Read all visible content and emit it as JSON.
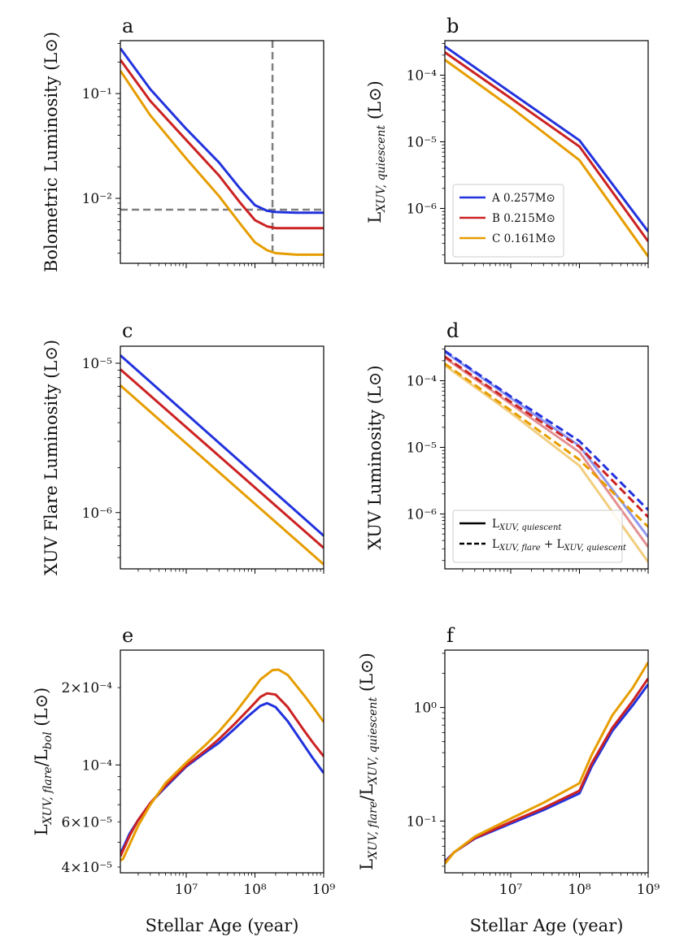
{
  "figure": {
    "xlabel": "Stellar Age (year)"
  },
  "colors": {
    "A": "#2233dd",
    "B": "#cc2222",
    "C": "#e69d00",
    "guide": "#7f7f7f"
  },
  "chart_data": [
    {
      "id": "a",
      "type": "line",
      "letter": "a",
      "ylabel": "Bolometric Luminosity (L⊙)",
      "xscale": "log",
      "yscale": "log",
      "xlim": [
        1100000,
        1000000000
      ],
      "ylim": [
        0.0024,
        0.32
      ],
      "xticks": [],
      "yticks": [
        {
          "v": 0.1,
          "label": "10⁻¹"
        },
        {
          "v": 0.01,
          "label": "10⁻²"
        }
      ],
      "guides": [
        {
          "axis": "x",
          "value": 180000000
        },
        {
          "axis": "y",
          "value": 0.0078
        }
      ],
      "series": [
        {
          "name": "A 0.257M⊙",
          "color": "A",
          "x": [
            1100000,
            3000000,
            10000000,
            30000000,
            60000000,
            100000000,
            150000000,
            200000000,
            400000000,
            1000000000
          ],
          "y": [
            0.27,
            0.11,
            0.046,
            0.022,
            0.0125,
            0.0086,
            0.0076,
            0.0074,
            0.0073,
            0.0073
          ]
        },
        {
          "name": "B 0.215M⊙",
          "color": "B",
          "x": [
            1100000,
            3000000,
            10000000,
            30000000,
            60000000,
            100000000,
            150000000,
            200000000,
            400000000,
            1000000000
          ],
          "y": [
            0.21,
            0.085,
            0.036,
            0.0165,
            0.0092,
            0.0062,
            0.0054,
            0.0052,
            0.0052,
            0.0052
          ]
        },
        {
          "name": "C 0.161M⊙",
          "color": "C",
          "x": [
            1100000,
            3000000,
            10000000,
            30000000,
            60000000,
            100000000,
            150000000,
            200000000,
            400000000,
            1000000000
          ],
          "y": [
            0.165,
            0.062,
            0.024,
            0.0105,
            0.0058,
            0.0038,
            0.0032,
            0.003,
            0.0029,
            0.0029
          ]
        }
      ]
    },
    {
      "id": "b",
      "type": "line",
      "letter": "b",
      "ylabel": "LXUV,quiescent (L⊙)",
      "ylabel_parts": {
        "main": "L",
        "sub": "XUV, quiescent",
        "unit": " (L⊙)"
      },
      "xscale": "log",
      "yscale": "log",
      "xlim": [
        1100000,
        1000000000
      ],
      "ylim": [
        1.5e-07,
        0.00033
      ],
      "xticks": [],
      "yticks": [
        {
          "v": 0.0001,
          "label": "10⁻⁴"
        },
        {
          "v": 1e-05,
          "label": "10⁻⁵"
        },
        {
          "v": 1e-06,
          "label": "10⁻⁶"
        }
      ],
      "legend": {
        "position": "lower-left",
        "entries": [
          {
            "label": "A 0.257M⊙",
            "color": "A",
            "style": "solid"
          },
          {
            "label": "B 0.215M⊙",
            "color": "B",
            "style": "solid"
          },
          {
            "label": "C 0.161M⊙",
            "color": "C",
            "style": "solid"
          }
        ]
      },
      "series": [
        {
          "name": "A 0.257M⊙",
          "color": "A",
          "x": [
            1100000,
            10000000,
            100000000,
            1000000000
          ],
          "y": [
            0.00027,
            5.5e-05,
            1.05e-05,
            4.5e-07
          ]
        },
        {
          "name": "B 0.215M⊙",
          "color": "B",
          "x": [
            1100000,
            10000000,
            100000000,
            1000000000
          ],
          "y": [
            0.00022,
            4.5e-05,
            8.5e-06,
            3.2e-07
          ]
        },
        {
          "name": "C 0.161M⊙",
          "color": "C",
          "x": [
            1100000,
            10000000,
            100000000,
            1000000000
          ],
          "y": [
            0.00017,
            3.3e-05,
            5.3e-06,
            1.9e-07
          ]
        }
      ]
    },
    {
      "id": "c",
      "type": "line",
      "letter": "c",
      "ylabel": "XUV Flare Luminosity (L⊙)",
      "xscale": "log",
      "yscale": "log",
      "xlim": [
        1100000,
        1000000000
      ],
      "ylim": [
        4.2e-07,
        1.3e-05
      ],
      "xticks": [],
      "yticks": [
        {
          "v": 1e-05,
          "label": "10⁻⁵"
        },
        {
          "v": 1e-06,
          "label": "10⁻⁶"
        }
      ],
      "series": [
        {
          "name": "A 0.257M⊙",
          "color": "A",
          "x": [
            1100000,
            1000000000
          ],
          "y": [
            1.13e-05,
            7e-07
          ]
        },
        {
          "name": "B 0.215M⊙",
          "color": "B",
          "x": [
            1100000,
            1000000000
          ],
          "y": [
            9.1e-06,
            5.8e-07
          ]
        },
        {
          "name": "C 0.161M⊙",
          "color": "C",
          "x": [
            1100000,
            1000000000
          ],
          "y": [
            7.1e-06,
            4.5e-07
          ]
        }
      ]
    },
    {
      "id": "d",
      "type": "line",
      "letter": "d",
      "ylabel": "XUV Luminosity (L⊙)",
      "xscale": "log",
      "yscale": "log",
      "xlim": [
        1100000,
        1000000000
      ],
      "ylim": [
        1.5e-07,
        0.00033
      ],
      "xticks": [],
      "yticks": [
        {
          "v": 0.0001,
          "label": "10⁻⁴"
        },
        {
          "v": 1e-05,
          "label": "10⁻⁵"
        },
        {
          "v": 1e-06,
          "label": "10⁻⁶"
        }
      ],
      "legend": {
        "position": "lower-left",
        "entries": [
          {
            "label": "LXUV,quiescent",
            "parts": {
              "main": "L",
              "sub": "XUV, quiescent"
            },
            "style": "solid"
          },
          {
            "label": "LXUV,flare + LXUV,quiescent",
            "parts": {
              "main": "L",
              "sub": "XUV, flare",
              "mid": " + L",
              "sub2": "XUV, quiescent"
            },
            "style": "dashed"
          }
        ]
      },
      "series": [
        {
          "name": "A quiescent",
          "color": "A",
          "style": "solid",
          "opacity": 0.5,
          "x": [
            1100000,
            10000000,
            100000000,
            1000000000
          ],
          "y": [
            0.00027,
            5.5e-05,
            1.05e-05,
            4.5e-07
          ]
        },
        {
          "name": "B quiescent",
          "color": "B",
          "style": "solid",
          "opacity": 0.5,
          "x": [
            1100000,
            10000000,
            100000000,
            1000000000
          ],
          "y": [
            0.00022,
            4.5e-05,
            8.5e-06,
            3.2e-07
          ]
        },
        {
          "name": "C quiescent",
          "color": "C",
          "style": "solid",
          "opacity": 0.5,
          "x": [
            1100000,
            10000000,
            100000000,
            1000000000
          ],
          "y": [
            0.00017,
            3.3e-05,
            5.3e-06,
            1.9e-07
          ]
        },
        {
          "name": "A flare + quiescent",
          "color": "A",
          "style": "dashed",
          "x": [
            1100000,
            10000000,
            100000000,
            1000000000
          ],
          "y": [
            0.00028,
            5.8e-05,
            1.24e-05,
            1.15e-06
          ]
        },
        {
          "name": "B flare + quiescent",
          "color": "B",
          "style": "dashed",
          "x": [
            1100000,
            10000000,
            100000000,
            1000000000
          ],
          "y": [
            0.00023,
            4.8e-05,
            1.02e-05,
            9e-07
          ]
        },
        {
          "name": "C flare + quiescent",
          "color": "C",
          "style": "dashed",
          "x": [
            1100000,
            10000000,
            100000000,
            1000000000
          ],
          "y": [
            0.00018,
            3.6e-05,
            6.5e-06,
            6.4e-07
          ]
        }
      ]
    },
    {
      "id": "e",
      "type": "line",
      "letter": "e",
      "ylabel": "LXUV,flare/Lbol (L⊙)",
      "ylabel_parts": {
        "main": "L",
        "sub": "XUV, flare",
        "mid": "/L",
        "sub2": "bol",
        "unit": " (L⊙)"
      },
      "xscale": "log",
      "yscale": "log",
      "xlim": [
        1100000,
        1000000000
      ],
      "ylim": [
        3.8e-05,
        0.00028
      ],
      "xticks": [
        {
          "v": 10000000,
          "label": "10⁷"
        },
        {
          "v": 100000000,
          "label": "10⁸"
        },
        {
          "v": 1000000000,
          "label": "10⁹"
        }
      ],
      "yticks": [
        {
          "v": 0.0002,
          "label": "2×10⁻⁴"
        },
        {
          "v": 0.0001,
          "label": "10⁻⁴"
        },
        {
          "v": 6e-05,
          "label": "6×10⁻⁵"
        },
        {
          "v": 4e-05,
          "label": "4×10⁻⁵"
        }
      ],
      "series": [
        {
          "name": "A 0.257M⊙",
          "color": "A",
          "x": [
            1100000,
            1500000,
            2000000,
            3000000,
            5000000,
            10000000,
            20000000,
            30000000,
            50000000,
            80000000,
            120000000,
            150000000,
            200000000,
            300000000,
            500000000,
            700000000,
            1000000000
          ],
          "y": [
            4.5e-05,
            5.4e-05,
            6.1e-05,
            7.1e-05,
            8.2e-05,
            9.85e-05,
            0.000113,
            0.000122,
            0.000138,
            0.000155,
            0.00017,
            0.000174,
            0.000168,
            0.000148,
            0.000121,
            0.000106,
            9.3e-05
          ]
        },
        {
          "name": "B 0.215M⊙",
          "color": "B",
          "x": [
            1100000,
            1500000,
            2000000,
            3000000,
            5000000,
            10000000,
            20000000,
            30000000,
            50000000,
            80000000,
            120000000,
            150000000,
            200000000,
            300000000,
            500000000,
            700000000,
            1000000000
          ],
          "y": [
            4.4e-05,
            5.3e-05,
            6.1e-05,
            7.1e-05,
            8.3e-05,
            9.95e-05,
            0.000115,
            0.000126,
            0.000144,
            0.000164,
            0.000184,
            0.00019,
            0.000188,
            0.000168,
            0.000138,
            0.000122,
            0.000108
          ]
        },
        {
          "name": "C 0.161M⊙",
          "color": "C",
          "x": [
            1100000,
            1200000,
            1500000,
            2000000,
            3000000,
            5000000,
            10000000,
            20000000,
            30000000,
            50000000,
            80000000,
            120000000,
            180000000,
            220000000,
            300000000,
            500000000,
            700000000,
            1000000000
          ],
          "y": [
            4.25e-05,
            4.3e-05,
            4.9e-05,
            5.8e-05,
            7e-05,
            8.5e-05,
            0.000102,
            0.000121,
            0.000135,
            0.000158,
            0.000186,
            0.000215,
            0.000234,
            0.000235,
            0.000224,
            0.000189,
            0.000168,
            0.000147
          ]
        }
      ]
    },
    {
      "id": "f",
      "type": "line",
      "letter": "f",
      "ylabel": "LXUV,flare/LXUV,quiescent (L⊙)",
      "ylabel_parts": {
        "main": "L",
        "sub": "XUV, flare",
        "mid": "/L",
        "sub2": "XUV, quiescent",
        "unit": " (L⊙)"
      },
      "xscale": "log",
      "yscale": "log",
      "xlim": [
        1100000,
        1000000000
      ],
      "ylim": [
        0.035,
        3.2
      ],
      "xticks": [
        {
          "v": 10000000,
          "label": "10⁷"
        },
        {
          "v": 100000000,
          "label": "10⁸"
        },
        {
          "v": 1000000000,
          "label": "10⁹"
        }
      ],
      "yticks": [
        {
          "v": 1,
          "label": "10⁰"
        },
        {
          "v": 0.1,
          "label": "10⁻¹"
        }
      ],
      "series": [
        {
          "name": "A 0.257M⊙",
          "color": "A",
          "x": [
            1100000,
            1500000,
            3000000,
            10000000,
            30000000,
            100000000,
            150000000,
            300000000,
            600000000,
            1000000000
          ],
          "y": [
            0.044,
            0.053,
            0.07,
            0.095,
            0.125,
            0.175,
            0.3,
            0.62,
            1.05,
            1.6
          ]
        },
        {
          "name": "B 0.215M⊙",
          "color": "B",
          "x": [
            1100000,
            1500000,
            3000000,
            10000000,
            30000000,
            100000000,
            150000000,
            300000000,
            600000000,
            1000000000
          ],
          "y": [
            0.043,
            0.053,
            0.071,
            0.098,
            0.13,
            0.185,
            0.32,
            0.66,
            1.15,
            1.8
          ]
        },
        {
          "name": "C 0.161M⊙",
          "color": "C",
          "x": [
            1100000,
            1500000,
            3000000,
            10000000,
            30000000,
            100000000,
            150000000,
            300000000,
            600000000,
            1000000000
          ],
          "y": [
            0.042,
            0.053,
            0.073,
            0.105,
            0.145,
            0.215,
            0.38,
            0.85,
            1.5,
            2.5
          ]
        }
      ]
    }
  ]
}
